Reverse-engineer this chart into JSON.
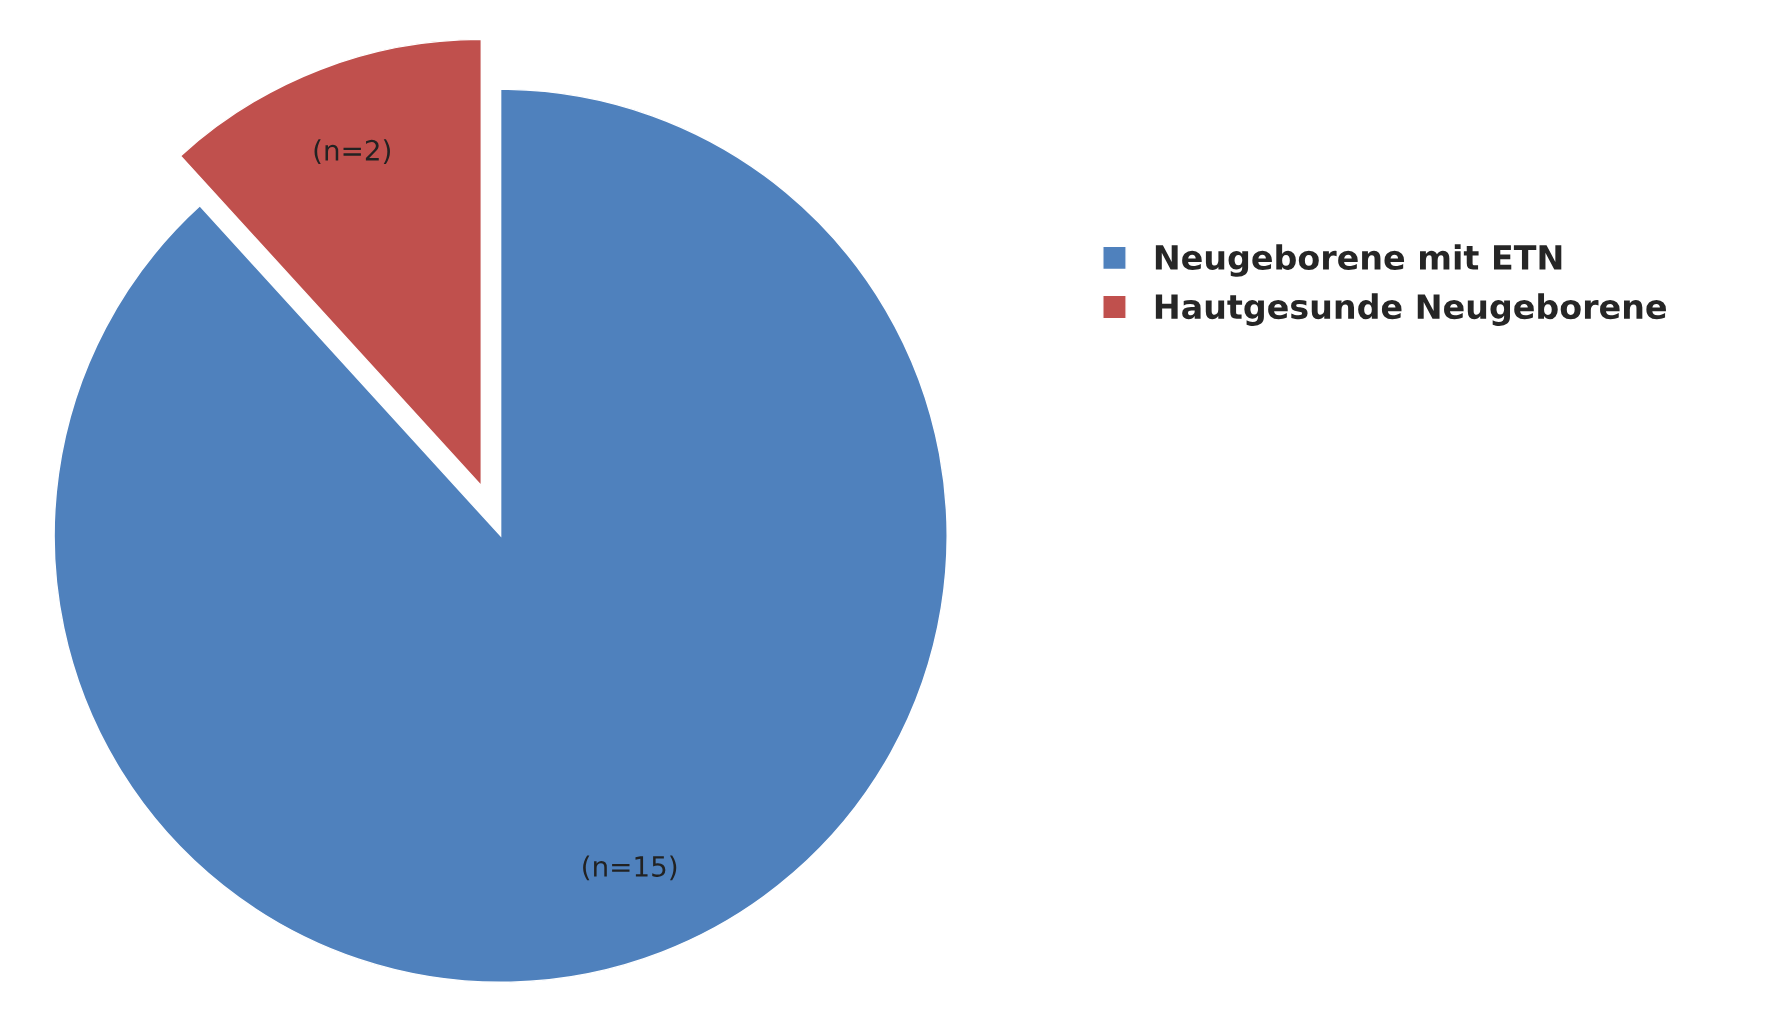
{
  "chart_data": {
    "type": "pie",
    "categories": [
      "Neugeborene mit ETN",
      "Hautgesunde Neugeborene"
    ],
    "values": [
      15,
      2
    ],
    "colors": [
      "#4f81bd",
      "#c0504d"
    ],
    "value_labels": [
      "(n=15)",
      "(n=2)"
    ],
    "legend": "right"
  }
}
